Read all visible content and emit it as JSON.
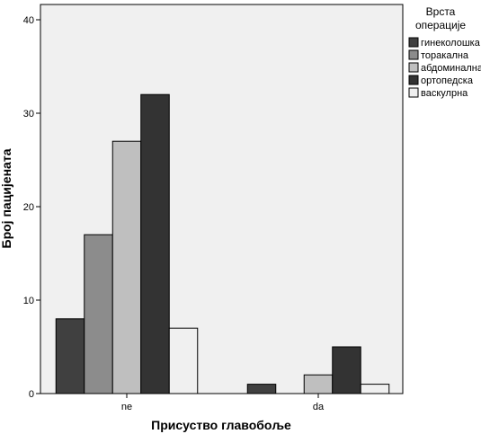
{
  "chart_data": {
    "type": "bar",
    "title": "",
    "xlabel": "Присуство главобоље",
    "ylabel": "Број пацијената",
    "categories": [
      "ne",
      "da"
    ],
    "ylim": [
      0,
      40
    ],
    "yticks": [
      0,
      10,
      20,
      30,
      40
    ],
    "grid": false,
    "legend": {
      "title_line1": "Врста",
      "title_line2": "операције",
      "placement": "right"
    },
    "series": [
      {
        "name": "гинеколошка",
        "color": "#404040",
        "values": [
          8,
          1
        ]
      },
      {
        "name": "торакална",
        "color": "#8c8c8c",
        "values": [
          17,
          0
        ]
      },
      {
        "name": "абдоминална",
        "color": "#bfbfbf",
        "values": [
          27,
          2
        ]
      },
      {
        "name": "ортопедска",
        "color": "#333333",
        "values": [
          32,
          5
        ]
      },
      {
        "name": "васкулрна",
        "color": "#f0f0f0",
        "values": [
          7,
          1
        ]
      }
    ]
  }
}
